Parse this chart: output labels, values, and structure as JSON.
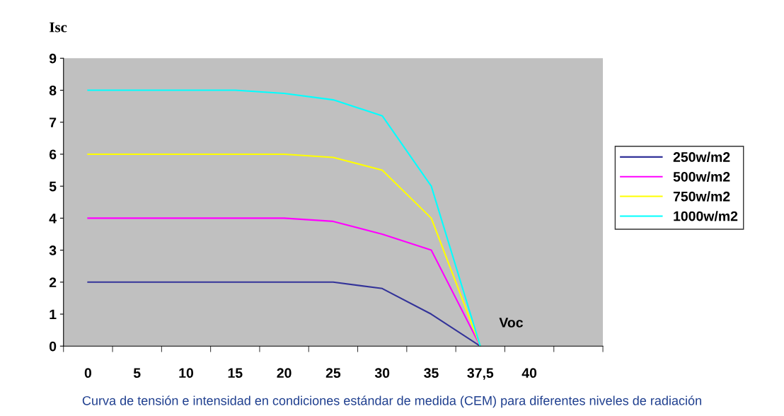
{
  "chart_data": {
    "type": "line",
    "xlabel": "Voc",
    "ylabel": "Isc",
    "categories": [
      "0",
      "5",
      "10",
      "15",
      "20",
      "25",
      "30",
      "35",
      "37,5",
      "40",
      null
    ],
    "series": [
      {
        "name": "250w/m2",
        "color": "#333399",
        "values": [
          2,
          2,
          2,
          2,
          2,
          2,
          1.8,
          1,
          0,
          null,
          null
        ]
      },
      {
        "name": "500w/m2",
        "color": "#ff00ff",
        "values": [
          4,
          4,
          4,
          4,
          4,
          3.9,
          3.5,
          3,
          0,
          null,
          null
        ]
      },
      {
        "name": "750w/m2",
        "color": "#ffff00",
        "values": [
          6,
          6,
          6,
          6,
          6,
          5.9,
          5.5,
          4,
          0,
          null,
          null
        ]
      },
      {
        "name": "1000w/m2",
        "color": "#00ffff",
        "values": [
          8,
          8,
          8,
          8,
          7.9,
          7.7,
          7.2,
          5,
          0,
          null,
          null
        ]
      }
    ],
    "ylim": [
      0,
      9
    ],
    "yticks": [
      0,
      1,
      2,
      3,
      4,
      5,
      6,
      7,
      8,
      9
    ],
    "legend": "right",
    "grid": false,
    "marker": "none",
    "line_style": "solid",
    "annotations": [
      "Curva de tensión e intensidad en condiciones estándar de medida (CEM) para diferentes niveles de radiación"
    ]
  }
}
